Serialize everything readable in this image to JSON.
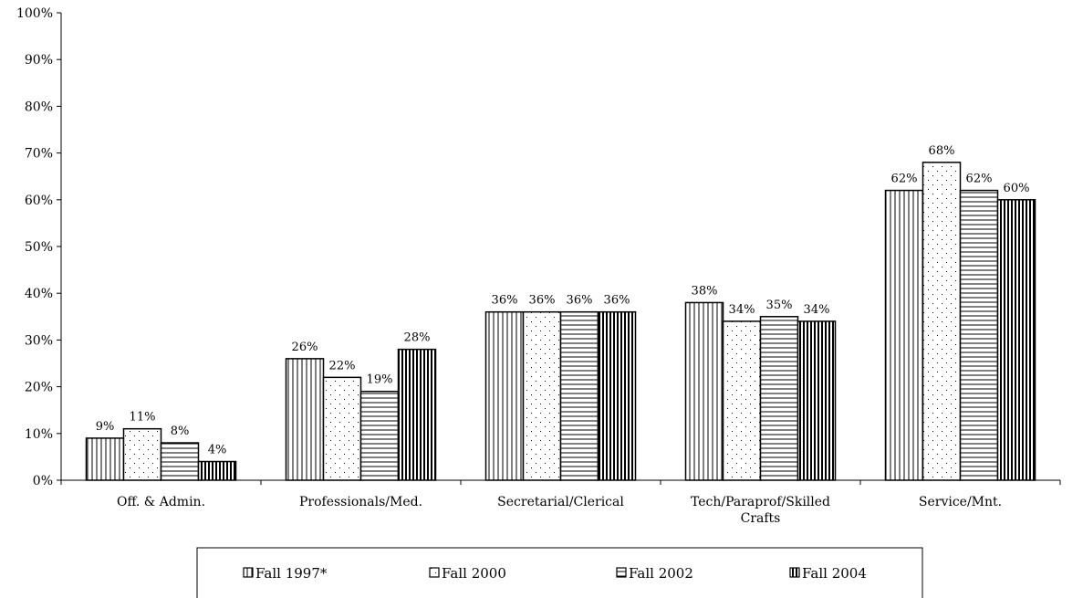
{
  "chart_data": {
    "type": "bar",
    "categories": [
      "Off. & Admin.",
      "Professionals/Med.",
      "Secretarial/Clerical",
      "Tech/Paraprof/Skilled Crafts",
      "Service/Mnt."
    ],
    "category_label_lines": [
      [
        "Off. & Admin."
      ],
      [
        "Professionals/Med."
      ],
      [
        "Secretarial/Clerical"
      ],
      [
        "Tech/Paraprof/Skilled",
        "Crafts"
      ],
      [
        "Service/Mnt."
      ]
    ],
    "series": [
      {
        "name": "Fall 1997*",
        "values": [
          9,
          26,
          36,
          38,
          62
        ],
        "labels": [
          "9%",
          "26%",
          "36%",
          "38%",
          "62%"
        ],
        "pattern": "vertical-lines"
      },
      {
        "name": "Fall 2000",
        "values": [
          11,
          22,
          36,
          34,
          68
        ],
        "labels": [
          "11%",
          "22%",
          "36%",
          "34%",
          "68%"
        ],
        "pattern": "dots"
      },
      {
        "name": "Fall 2002",
        "values": [
          8,
          19,
          36,
          35,
          62
        ],
        "labels": [
          "8%",
          "19%",
          "36%",
          "35%",
          "62%"
        ],
        "pattern": "horizontal-lines"
      },
      {
        "name": "Fall 2004",
        "values": [
          4,
          28,
          36,
          34,
          60
        ],
        "labels": [
          "4%",
          "28%",
          "36%",
          "34%",
          "60%"
        ],
        "pattern": "heavy-vertical-lines"
      }
    ],
    "yticks": [
      "0%",
      "10%",
      "20%",
      "30%",
      "40%",
      "50%",
      "60%",
      "70%",
      "80%",
      "90%",
      "100%"
    ],
    "ylim": [
      0,
      100
    ],
    "title": "",
    "xlabel": "",
    "ylabel": "",
    "grid": false,
    "legend": "bottom",
    "colors": {
      "bar_fill": "#ffffff",
      "stroke": "#000000"
    }
  }
}
